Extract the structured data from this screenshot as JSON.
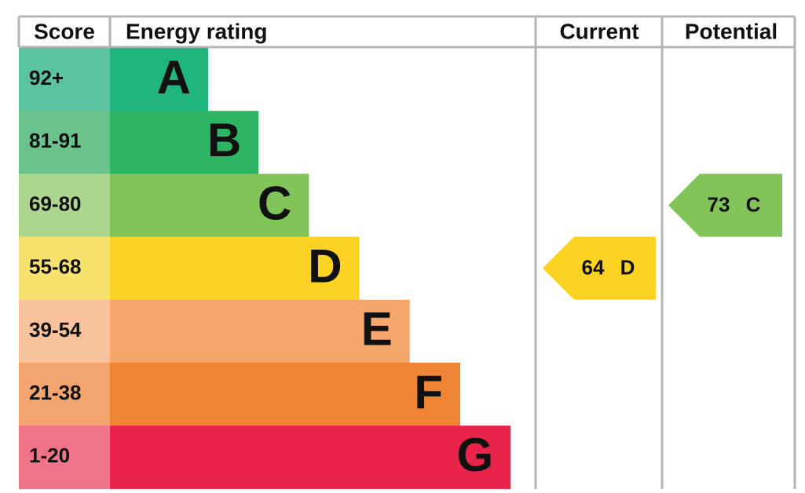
{
  "header": {
    "score": "Score",
    "rating": "Energy rating",
    "current": "Current",
    "potential": "Potential"
  },
  "bands": [
    {
      "score": "92+",
      "letter": "A",
      "color": "#1fb57c",
      "score_color": "#5cc3a0"
    },
    {
      "score": "81-91",
      "letter": "B",
      "color": "#2db564",
      "score_color": "#6ac28d"
    },
    {
      "score": "69-80",
      "letter": "C",
      "color": "#82c35a",
      "score_color": "#add68e"
    },
    {
      "score": "55-68",
      "letter": "D",
      "color": "#fcd322",
      "score_color": "#f8e26e"
    },
    {
      "score": "39-54",
      "letter": "E",
      "color": "#f5a66b",
      "score_color": "#f8c39c"
    },
    {
      "score": "21-38",
      "letter": "F",
      "color": "#ef8434",
      "score_color": "#f3a570"
    },
    {
      "score": "1-20",
      "letter": "G",
      "color": "#e92349",
      "score_color": "#ef7489"
    }
  ],
  "current": {
    "score": "64",
    "letter": "D"
  },
  "potential": {
    "score": "73",
    "letter": "C"
  }
}
